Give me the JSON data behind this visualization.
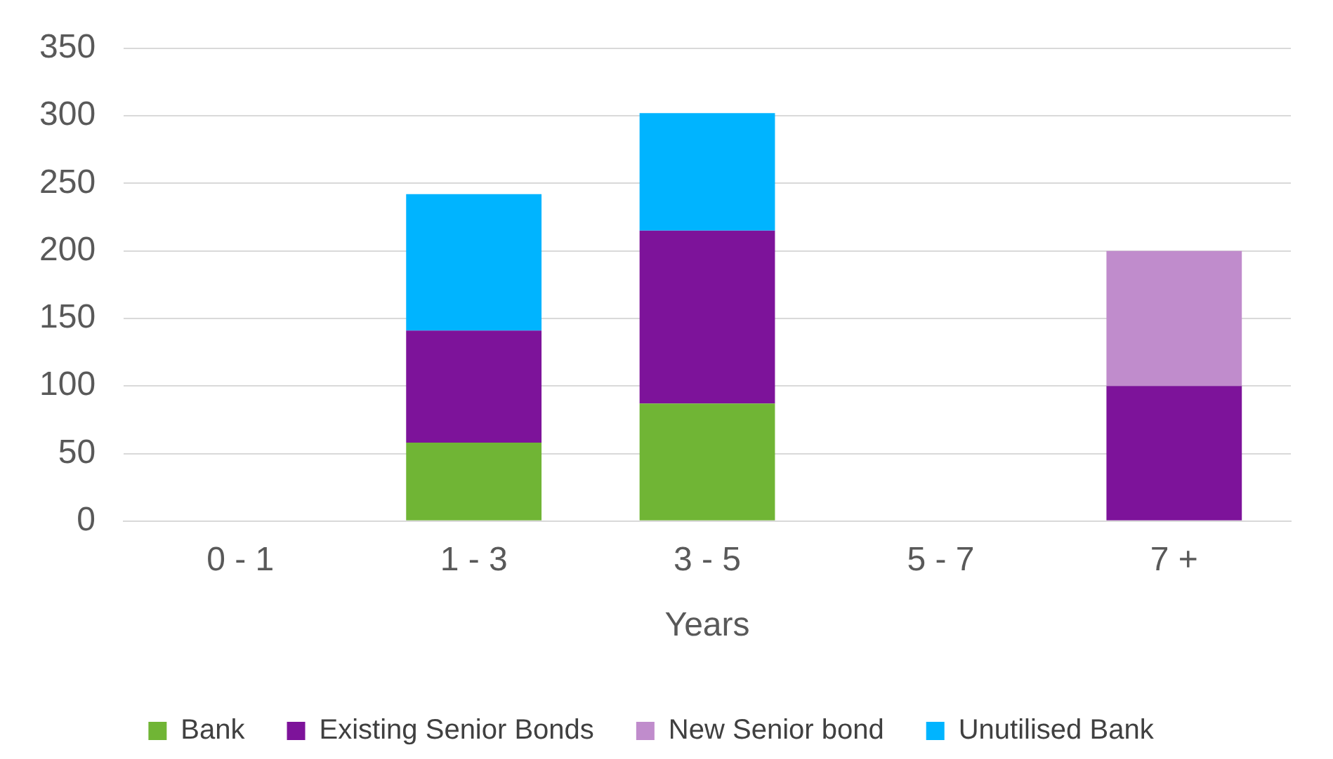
{
  "chart_data": {
    "type": "bar",
    "stacked": true,
    "xlabel": "Years",
    "categories": [
      "0 - 1",
      "1 - 3",
      "3 - 5",
      "5 - 7",
      "7 +"
    ],
    "series": [
      {
        "name": "Bank",
        "color": "#70b535",
        "values": [
          null,
          58,
          87,
          null,
          null
        ]
      },
      {
        "name": "Existing Senior Bonds",
        "color": "#7d139a",
        "values": [
          null,
          83,
          128,
          null,
          100
        ]
      },
      {
        "name": "New Senior bond",
        "color": "#c08ccc",
        "values": [
          null,
          null,
          null,
          null,
          100
        ]
      },
      {
        "name": "Unutilised Bank",
        "color": "#00b4ff",
        "values": [
          null,
          101,
          87,
          null,
          null
        ]
      }
    ],
    "ylim": [
      0,
      350
    ],
    "yticks": [
      0,
      50,
      100,
      150,
      200,
      250,
      300,
      350
    ],
    "grid": "y",
    "legend": "bottom"
  }
}
